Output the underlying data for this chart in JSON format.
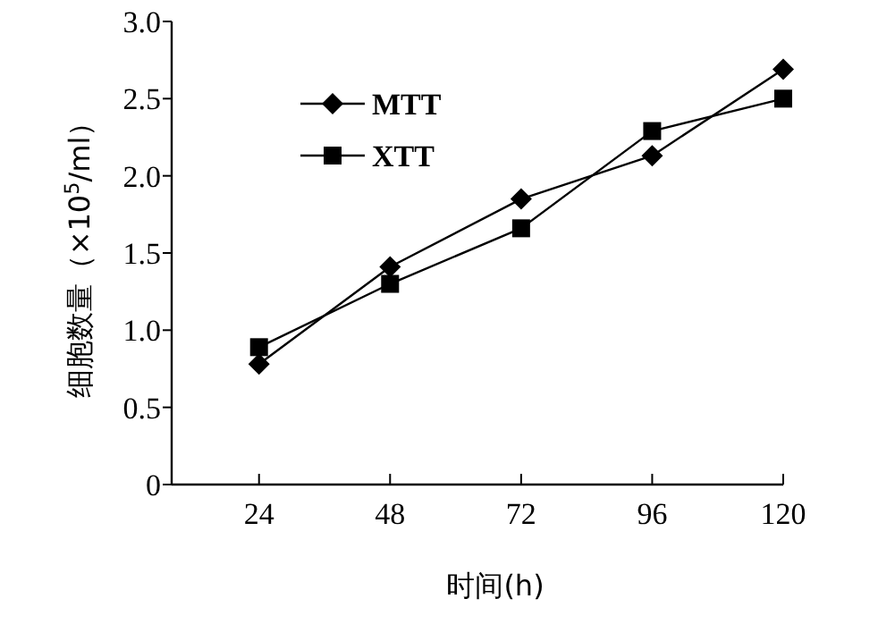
{
  "chart_data": {
    "type": "line",
    "x": [
      24,
      48,
      72,
      96,
      120
    ],
    "series": [
      {
        "name": "MTT",
        "color": "#000000",
        "marker": "diamond",
        "values": [
          0.78,
          1.41,
          1.85,
          2.13,
          2.69
        ]
      },
      {
        "name": "XTT",
        "color": "#000000",
        "marker": "square",
        "values": [
          0.89,
          1.3,
          1.66,
          2.29,
          2.5
        ]
      }
    ],
    "xlabel": "时间(h)",
    "ylabel": "细胞数量（×10$^{5}$/ml）",
    "xlim": [
      8,
      120
    ],
    "xticks": [
      24,
      48,
      72,
      96,
      120
    ],
    "ylim": [
      0,
      3
    ],
    "yticks": [
      0,
      0.5,
      {
        "value": 1,
        "label": "1.0"
      },
      1.5,
      {
        "value": 2,
        "label": "2.0"
      },
      2.5,
      {
        "value": 3,
        "label": "3.0"
      }
    ],
    "legend": "top left",
    "grid": false,
    "line_style": "solid"
  }
}
